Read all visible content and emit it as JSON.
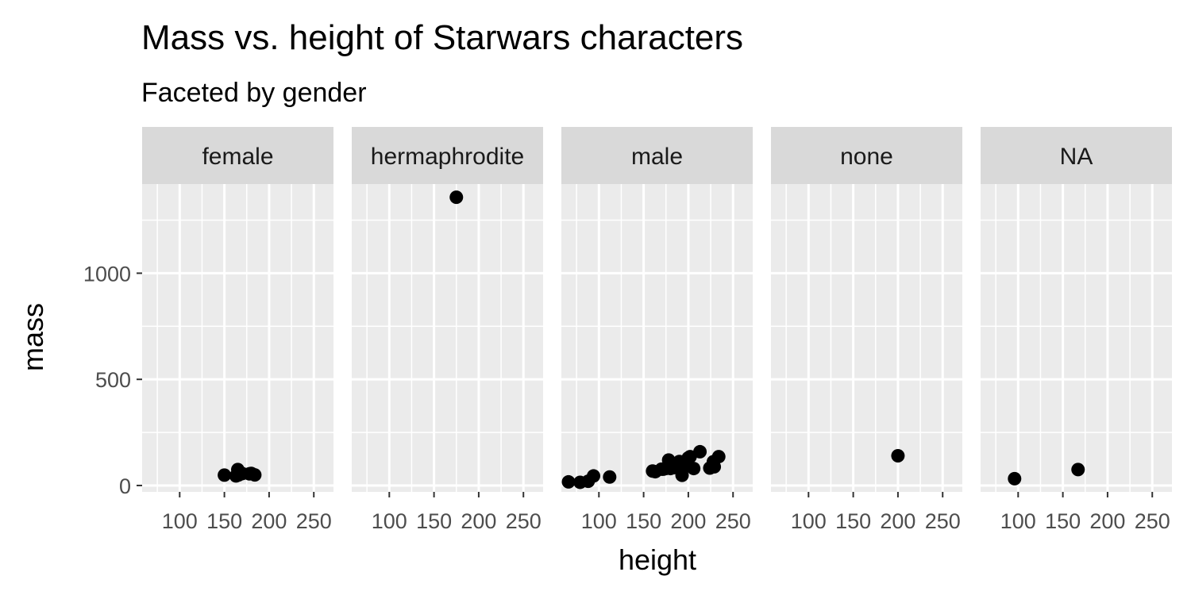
{
  "chart_data": {
    "type": "scatter",
    "title": "Mass vs. height of Starwars characters",
    "subtitle": "Faceted by gender",
    "xlabel": "height",
    "ylabel": "mass",
    "xlim": [
      58,
      272
    ],
    "ylim": [
      -30,
      1420
    ],
    "x_ticks": [
      100,
      150,
      200,
      250
    ],
    "y_ticks": [
      0,
      500,
      1000
    ],
    "grid": true,
    "point_color": "#000000",
    "panel_color": "#ebebeb",
    "strip_color": "#d9d9d9",
    "panels": [
      {
        "label": "female",
        "points": [
          {
            "x": 150,
            "y": 49
          },
          {
            "x": 165,
            "y": 75
          },
          {
            "x": 166,
            "y": 50
          },
          {
            "x": 168,
            "y": 55
          },
          {
            "x": 178,
            "y": 55
          },
          {
            "x": 184,
            "y": 50
          },
          {
            "x": 170,
            "y": 56.2
          },
          {
            "x": 163,
            "y": 45
          },
          {
            "x": 180,
            "y": 57
          }
        ]
      },
      {
        "label": "hermaphrodite",
        "points": [
          {
            "x": 175,
            "y": 1358
          }
        ]
      },
      {
        "label": "male",
        "points": [
          {
            "x": 66,
            "y": 17
          },
          {
            "x": 79,
            "y": 15
          },
          {
            "x": 88,
            "y": 20
          },
          {
            "x": 94,
            "y": 45
          },
          {
            "x": 112,
            "y": 40
          },
          {
            "x": 160,
            "y": 68
          },
          {
            "x": 163,
            "y": 65
          },
          {
            "x": 170,
            "y": 77
          },
          {
            "x": 172,
            "y": 77
          },
          {
            "x": 175,
            "y": 80
          },
          {
            "x": 178,
            "y": 120
          },
          {
            "x": 180,
            "y": 80
          },
          {
            "x": 182,
            "y": 90
          },
          {
            "x": 183,
            "y": 84
          },
          {
            "x": 185,
            "y": 85
          },
          {
            "x": 188,
            "y": 88
          },
          {
            "x": 190,
            "y": 113
          },
          {
            "x": 191,
            "y": 90
          },
          {
            "x": 193,
            "y": 48
          },
          {
            "x": 196,
            "y": 90
          },
          {
            "x": 198,
            "y": 102
          },
          {
            "x": 200,
            "y": 130
          },
          {
            "x": 202,
            "y": 136
          },
          {
            "x": 206,
            "y": 80
          },
          {
            "x": 213,
            "y": 159
          },
          {
            "x": 224,
            "y": 82
          },
          {
            "x": 228,
            "y": 112
          },
          {
            "x": 229,
            "y": 88
          },
          {
            "x": 234,
            "y": 136
          }
        ]
      },
      {
        "label": "none",
        "points": [
          {
            "x": 200,
            "y": 140
          }
        ]
      },
      {
        "label": "NA",
        "points": [
          {
            "x": 96,
            "y": 32
          },
          {
            "x": 167,
            "y": 75
          }
        ]
      }
    ]
  }
}
